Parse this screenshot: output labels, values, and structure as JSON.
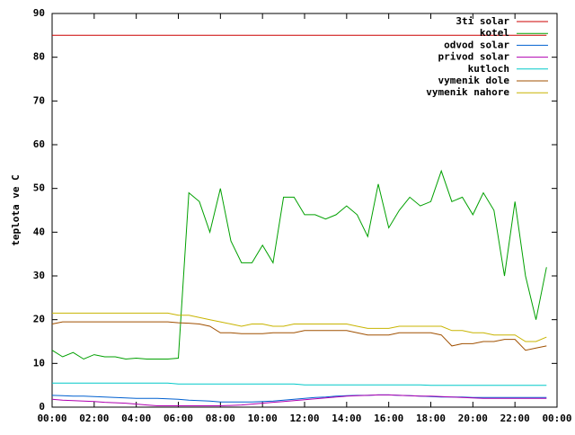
{
  "chart_data": {
    "type": "line",
    "ylabel": "teplota ve C",
    "x": [
      0,
      0.5,
      1,
      1.5,
      2,
      2.5,
      3,
      3.5,
      4,
      4.5,
      5,
      5.5,
      6,
      6.5,
      7,
      7.5,
      8,
      8.5,
      9,
      9.5,
      10,
      10.5,
      11,
      11.5,
      12,
      12.5,
      13,
      13.5,
      14,
      14.5,
      15,
      15.5,
      16,
      16.5,
      17,
      17.5,
      18,
      18.5,
      19,
      19.5,
      20,
      20.5,
      21,
      21.5,
      22,
      22.5,
      23,
      23.5
    ],
    "xlim": [
      0,
      24
    ],
    "xticks": [
      {
        "value": 0,
        "label": "00:00"
      },
      {
        "value": 2,
        "label": "02:00"
      },
      {
        "value": 4,
        "label": "04:00"
      },
      {
        "value": 6,
        "label": "06:00"
      },
      {
        "value": 8,
        "label": "08:00"
      },
      {
        "value": 10,
        "label": "10:00"
      },
      {
        "value": 12,
        "label": "12:00"
      },
      {
        "value": 14,
        "label": "14:00"
      },
      {
        "value": 16,
        "label": "16:00"
      },
      {
        "value": 18,
        "label": "18:00"
      },
      {
        "value": 20,
        "label": "20:00"
      },
      {
        "value": 22,
        "label": "22:00"
      },
      {
        "value": 24,
        "label": "00:00"
      }
    ],
    "ylim": [
      0,
      90
    ],
    "yticks": [
      0,
      10,
      20,
      30,
      40,
      50,
      60,
      70,
      80,
      90
    ],
    "legend": "top-right",
    "series": [
      {
        "name": "3ti solar",
        "color": "#cc0000",
        "values": [
          85,
          85,
          85,
          85,
          85,
          85,
          85,
          85,
          85,
          85,
          85,
          85,
          85,
          85,
          85,
          85,
          85,
          85,
          85,
          85,
          85,
          85,
          85,
          85,
          85,
          85,
          85,
          85,
          85,
          85,
          85,
          85,
          85,
          85,
          85,
          85,
          85,
          85,
          85,
          85,
          85,
          85,
          85,
          85,
          85,
          85,
          85,
          85
        ]
      },
      {
        "name": "kotel",
        "color": "#00a000",
        "values": [
          13,
          11.5,
          12.5,
          11,
          12,
          11.5,
          11.5,
          11,
          11.2,
          11,
          11,
          11,
          11.2,
          49,
          47,
          40,
          50,
          38,
          33,
          33,
          37,
          33,
          48,
          48,
          44,
          44,
          43,
          44,
          46,
          44,
          39,
          51,
          41,
          45,
          48,
          46,
          47,
          54,
          47,
          48,
          44,
          49,
          45,
          30,
          47,
          30,
          20,
          32
        ]
      },
      {
        "name": "odvod solar",
        "color": "#0060d0",
        "values": [
          2.7,
          2.6,
          2.5,
          2.5,
          2.4,
          2.3,
          2.2,
          2.1,
          2,
          2,
          2,
          1.9,
          1.8,
          1.6,
          1.5,
          1.4,
          1.2,
          1.2,
          1.2,
          1.2,
          1.3,
          1.4,
          1.6,
          1.8,
          2,
          2.2,
          2.3,
          2.5,
          2.6,
          2.7,
          2.7,
          2.8,
          2.8,
          2.7,
          2.6,
          2.5,
          2.4,
          2.3,
          2.3,
          2.3,
          2.2,
          2.2,
          2.2,
          2.2,
          2.2,
          2.2,
          2.2,
          2.2
        ]
      },
      {
        "name": "privod solar",
        "color": "#b000b0",
        "values": [
          1.8,
          1.6,
          1.5,
          1.4,
          1.3,
          1.1,
          1,
          0.9,
          0.7,
          0.5,
          0.3,
          0.3,
          0.3,
          0.3,
          0.3,
          0.3,
          0.3,
          0.4,
          0.5,
          0.7,
          0.9,
          1.1,
          1.3,
          1.5,
          1.7,
          1.9,
          2.1,
          2.3,
          2.5,
          2.6,
          2.7,
          2.8,
          2.8,
          2.7,
          2.6,
          2.5,
          2.5,
          2.4,
          2.3,
          2.2,
          2.1,
          2,
          2,
          2,
          2,
          2,
          2,
          2
        ]
      },
      {
        "name": "kutloch",
        "color": "#00c8c8",
        "values": [
          5.5,
          5.5,
          5.5,
          5.5,
          5.5,
          5.5,
          5.5,
          5.5,
          5.5,
          5.5,
          5.5,
          5.5,
          5.3,
          5.3,
          5.3,
          5.3,
          5.3,
          5.3,
          5.3,
          5.3,
          5.3,
          5.3,
          5.3,
          5.3,
          5.1,
          5.1,
          5.1,
          5.1,
          5.1,
          5.1,
          5.1,
          5.1,
          5.1,
          5.1,
          5.1,
          5.1,
          5,
          5,
          5,
          5,
          5,
          5,
          5,
          5,
          5,
          5,
          5,
          5
        ]
      },
      {
        "name": "vymenik dole",
        "color": "#a05000",
        "values": [
          19,
          19.5,
          19.5,
          19.5,
          19.5,
          19.5,
          19.5,
          19.5,
          19.5,
          19.5,
          19.5,
          19.5,
          19.3,
          19.2,
          19,
          18.5,
          17,
          17,
          16.8,
          16.8,
          16.8,
          17,
          17,
          17,
          17.5,
          17.5,
          17.5,
          17.5,
          17.5,
          17,
          16.5,
          16.5,
          16.5,
          17,
          17,
          17,
          17,
          16.5,
          14,
          14.5,
          14.5,
          15,
          15,
          15.5,
          15.5,
          13,
          13.5,
          14
        ]
      },
      {
        "name": "vymenik nahore",
        "color": "#c8b400",
        "values": [
          21.5,
          21.5,
          21.5,
          21.5,
          21.5,
          21.5,
          21.5,
          21.5,
          21.5,
          21.5,
          21.5,
          21.5,
          21,
          21,
          20.5,
          20,
          19.5,
          19,
          18.5,
          19,
          19,
          18.5,
          18.5,
          19,
          19,
          19,
          19,
          19,
          19,
          18.5,
          18,
          18,
          18,
          18.5,
          18.5,
          18.5,
          18.5,
          18.5,
          17.5,
          17.5,
          17,
          17,
          16.5,
          16.5,
          16.5,
          15,
          15,
          16
        ]
      }
    ]
  }
}
